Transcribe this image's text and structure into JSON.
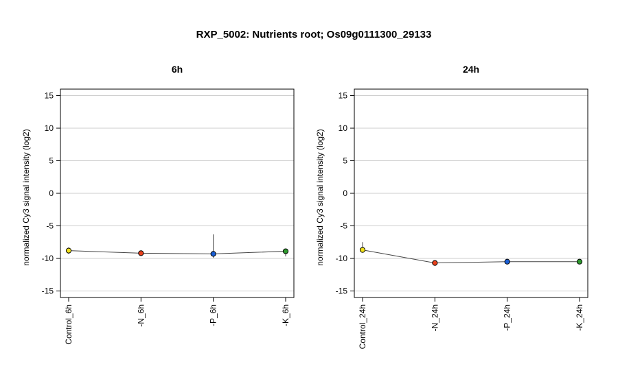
{
  "title": "RXP_5002: Nutrients root; Os09g0111300_29133",
  "colors": {
    "control": "#f2e21b",
    "N": "#e8401c",
    "P": "#1a5fd6",
    "K": "#2e9a2e",
    "line": "#444444",
    "grid": "#cccccc"
  },
  "chart_data": [
    {
      "type": "line",
      "title": "6h",
      "ylabel": "normalized Cy3 signal intensity (log2)",
      "ylim": [
        -16,
        16
      ],
      "yticks": [
        -15,
        -10,
        -5,
        0,
        5,
        10,
        15
      ],
      "grid": true,
      "categories": [
        "Control_6h",
        "-N_6h",
        "-P_6h",
        "-K_6h"
      ],
      "values": [
        -8.8,
        -9.2,
        -9.3,
        -8.9
      ],
      "errors": [
        [
          -9.3,
          -8.3
        ],
        [
          -9.3,
          -9.1
        ],
        [
          -9.9,
          -6.3
        ],
        [
          -9.7,
          -8.5
        ]
      ],
      "point_colors": [
        "control",
        "N",
        "P",
        "K"
      ]
    },
    {
      "type": "line",
      "title": "24h",
      "ylabel": "normalized Cy3 signal intensity (log2)",
      "ylim": [
        -16,
        16
      ],
      "yticks": [
        -15,
        -10,
        -5,
        0,
        5,
        10,
        15
      ],
      "grid": true,
      "categories": [
        "Control_24h",
        "-N_24h",
        "-P_24h",
        "-K_24h"
      ],
      "values": [
        -8.7,
        -10.7,
        -10.5,
        -10.5
      ],
      "errors": [
        [
          -9.0,
          -7.5
        ],
        [
          -10.8,
          -10.6
        ],
        [
          -10.6,
          -10.4
        ],
        [
          -10.6,
          -10.4
        ]
      ],
      "point_colors": [
        "control",
        "N",
        "P",
        "K"
      ]
    }
  ]
}
